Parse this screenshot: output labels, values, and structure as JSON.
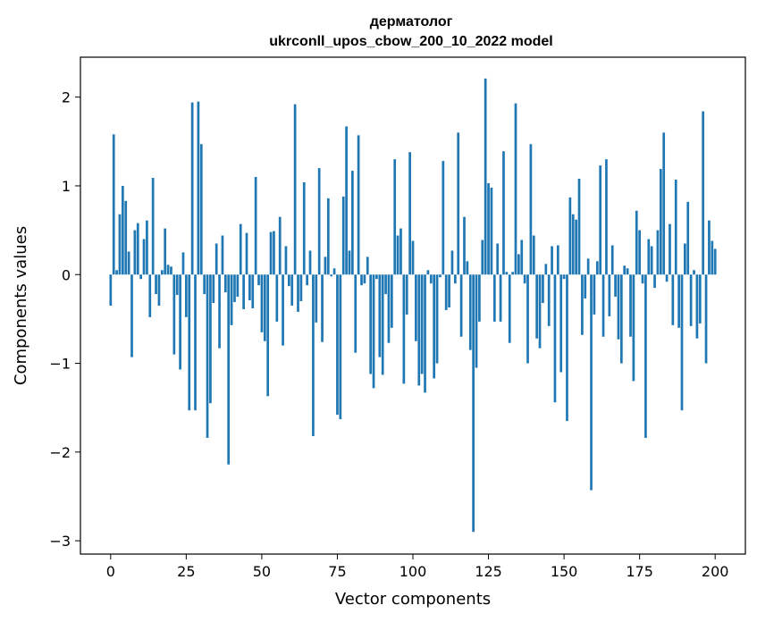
{
  "chart_data": {
    "type": "bar",
    "title_line1": "дерматолог",
    "title_line2": "ukrconll_upos_cbow_200_10_2022 model",
    "xlabel": "Vector components",
    "ylabel": "Components values",
    "xlim": [
      -10,
      210
    ],
    "ylim": [
      -3.15,
      2.45
    ],
    "x_ticks": [
      0,
      25,
      50,
      75,
      100,
      125,
      150,
      175,
      200
    ],
    "x_tick_labels": [
      "0",
      "25",
      "50",
      "75",
      "100",
      "125",
      "150",
      "175",
      "200"
    ],
    "y_ticks": [
      -3,
      -2,
      -1,
      0,
      1,
      2
    ],
    "y_tick_labels": [
      "−3",
      "−2",
      "−1",
      "0",
      "1",
      "2"
    ],
    "grid": false,
    "legend": "none",
    "bar_color": "#1f77b4",
    "values": [
      -0.35,
      1.58,
      0.05,
      0.68,
      1.0,
      0.83,
      0.26,
      -0.93,
      0.5,
      0.58,
      -0.05,
      0.4,
      0.61,
      -0.48,
      1.09,
      -0.22,
      -0.35,
      0.05,
      0.52,
      0.11,
      0.09,
      -0.9,
      -0.23,
      -1.07,
      0.25,
      -0.48,
      -1.53,
      1.94,
      -1.53,
      1.95,
      1.47,
      -0.22,
      -1.84,
      -1.45,
      -0.32,
      0.35,
      -0.83,
      0.44,
      -0.2,
      -2.14,
      -0.57,
      -0.31,
      -0.25,
      0.57,
      -0.39,
      0.47,
      -0.29,
      -0.38,
      1.1,
      -0.12,
      -0.65,
      -0.75,
      -1.37,
      0.48,
      0.49,
      -0.53,
      0.65,
      -0.8,
      0.32,
      -0.13,
      -0.35,
      1.92,
      -0.42,
      -0.3,
      1.04,
      -0.12,
      0.27,
      -1.82,
      -0.54,
      1.2,
      -0.76,
      0.2,
      0.86,
      -0.02,
      0.07,
      -1.58,
      -1.63,
      0.88,
      1.67,
      0.27,
      1.17,
      -0.88,
      1.57,
      -0.12,
      -0.1,
      0.2,
      -1.12,
      -1.28,
      -0.05,
      -0.93,
      -1.13,
      -0.22,
      -0.77,
      -0.6,
      1.3,
      0.44,
      0.52,
      -1.23,
      -0.45,
      1.38,
      0.38,
      -0.75,
      -1.25,
      -1.12,
      -1.33,
      0.05,
      -0.1,
      -1.17,
      -1.0,
      -0.03,
      1.28,
      -0.4,
      -0.37,
      0.27,
      -0.1,
      1.6,
      -0.7,
      0.65,
      0.15,
      -0.85,
      -2.9,
      -1.05,
      -0.53,
      0.39,
      2.21,
      1.03,
      0.98,
      -0.53,
      0.35,
      -0.53,
      1.39,
      0.03,
      -0.77,
      0.03,
      1.93,
      0.23,
      0.39,
      -0.1,
      -1.0,
      1.47,
      0.44,
      -0.72,
      -0.83,
      -0.32,
      0.12,
      -0.58,
      0.32,
      -1.44,
      0.33,
      -1.1,
      -0.05,
      -1.65,
      0.87,
      0.68,
      0.62,
      1.08,
      -0.68,
      -0.27,
      0.18,
      -2.43,
      -0.45,
      0.15,
      1.23,
      -0.7,
      1.3,
      -0.47,
      0.33,
      -0.25,
      -0.73,
      -1.0,
      0.1,
      0.07,
      -0.7,
      -1.2,
      0.72,
      0.5,
      -0.1,
      -1.84,
      0.4,
      0.32,
      -0.15,
      0.5,
      1.19,
      1.6,
      -0.08,
      0.57,
      -0.57,
      1.07,
      -0.6,
      -1.53,
      0.35,
      0.82,
      -0.58,
      0.05,
      -0.72,
      -0.55,
      1.84,
      -1.0,
      0.61,
      0.38,
      0.29
    ]
  }
}
